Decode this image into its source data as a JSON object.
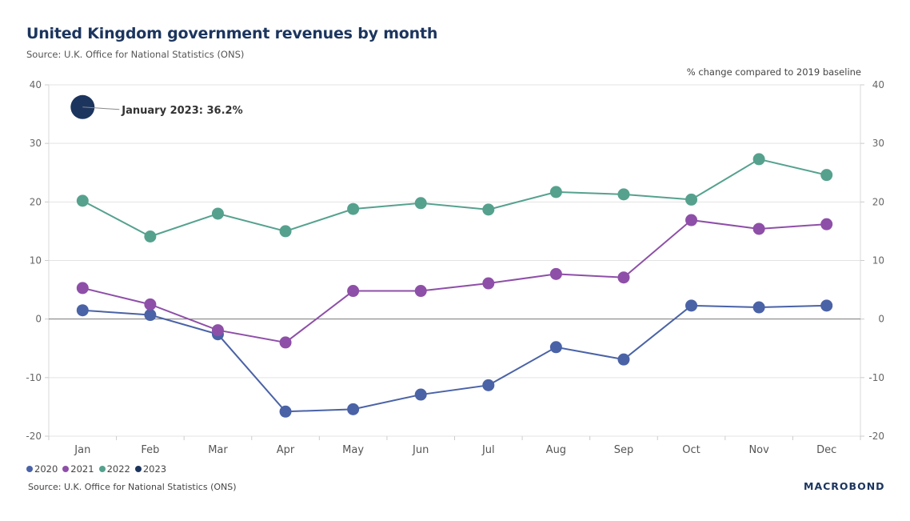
{
  "header": {
    "title": "United Kingdom government revenues by month",
    "subtitle": "Source: U.K. Office for National Statistics (ONS)",
    "axis_note": "% change compared to 2019 baseline"
  },
  "footer": {
    "source": "Source: U.K. Office for National Statistics (ONS)",
    "brand": "MACROBOND"
  },
  "chart_data": {
    "type": "line",
    "title": "United Kingdom government revenues by month",
    "subtitle": "Source: U.K. Office for National Statistics (ONS)",
    "xlabel": "",
    "ylabel": "% change compared to 2019 baseline",
    "ylim": [
      -20,
      40
    ],
    "yticks": [
      40,
      30,
      20,
      10,
      0,
      -10,
      -20
    ],
    "grid": true,
    "legend_position": "bottom-left",
    "categories": [
      "Jan",
      "Feb",
      "Mar",
      "Apr",
      "May",
      "Jun",
      "Jul",
      "Aug",
      "Sep",
      "Oct",
      "Nov",
      "Dec"
    ],
    "series": [
      {
        "name": "2020",
        "color": "#4a62a6",
        "values": [
          1.5,
          0.7,
          -2.6,
          -15.8,
          -15.4,
          -12.9,
          -11.3,
          -4.8,
          -6.9,
          2.3,
          2.0,
          2.3
        ]
      },
      {
        "name": "2021",
        "color": "#8e4fa8",
        "values": [
          5.3,
          2.5,
          -1.9,
          -4.0,
          4.8,
          4.8,
          6.1,
          7.7,
          7.1,
          16.9,
          15.4,
          16.2
        ]
      },
      {
        "name": "2022",
        "color": "#55a18e",
        "values": [
          20.2,
          14.1,
          18.0,
          15.0,
          18.8,
          19.8,
          18.7,
          21.7,
          21.3,
          20.4,
          27.3,
          24.6
        ]
      },
      {
        "name": "2023",
        "color": "#1c355e",
        "values": [
          36.2,
          null,
          null,
          null,
          null,
          null,
          null,
          null,
          null,
          null,
          null,
          null
        ]
      }
    ],
    "annotations": [
      {
        "text": "January 2023: 36.2%",
        "series": "2023",
        "category": "Jan",
        "value": 36.2
      }
    ]
  }
}
